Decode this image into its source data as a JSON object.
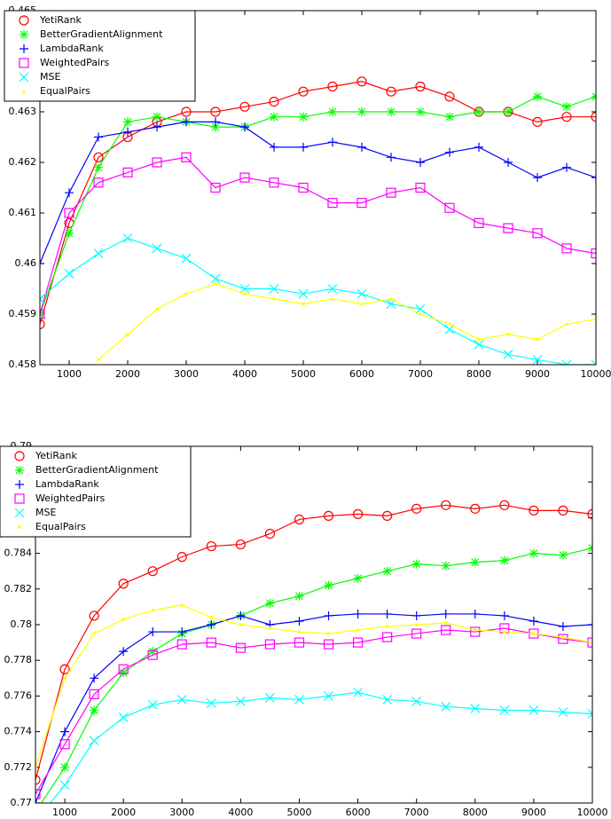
{
  "chart_data": [
    {
      "type": "line",
      "legend": "upper left",
      "x": [
        500,
        1000,
        1500,
        2000,
        2500,
        3000,
        3500,
        4000,
        4500,
        5000,
        5500,
        6000,
        6500,
        7000,
        7500,
        8000,
        8500,
        9000,
        9500,
        10000
      ],
      "xlim": [
        500,
        10000
      ],
      "xticks": [
        1000,
        2000,
        3000,
        4000,
        5000,
        6000,
        7000,
        8000,
        9000,
        10000
      ],
      "ylim": [
        0.458,
        0.465
      ],
      "yticks": [
        0.458,
        0.459,
        0.46,
        0.461,
        0.462,
        0.463,
        0.464,
        0.465
      ],
      "series": [
        {
          "name": "YetiRank",
          "color": "#ff0000",
          "marker": "o",
          "values": [
            0.4588,
            0.4608,
            0.4621,
            0.4625,
            0.4628,
            0.463,
            0.463,
            0.4631,
            0.4632,
            0.4634,
            0.4635,
            0.4636,
            0.4634,
            0.4635,
            0.4633,
            0.463,
            0.463,
            0.4628,
            0.4629,
            0.4629
          ]
        },
        {
          "name": "BetterGradientAlignment",
          "color": "#00ff00",
          "marker": "*",
          "values": [
            0.459,
            0.4606,
            0.4619,
            0.4628,
            0.4629,
            0.4628,
            0.4627,
            0.4627,
            0.4629,
            0.4629,
            0.463,
            0.463,
            0.463,
            0.463,
            0.4629,
            0.463,
            0.463,
            0.4633,
            0.4631,
            0.4633
          ]
        },
        {
          "name": "LambdaRank",
          "color": "#0000ff",
          "marker": "+",
          "values": [
            0.46,
            0.4614,
            0.4625,
            0.4626,
            0.4627,
            0.4628,
            0.4628,
            0.4627,
            0.4623,
            0.4623,
            0.4624,
            0.4623,
            0.4621,
            0.462,
            0.4622,
            0.4623,
            0.462,
            0.4617,
            0.4619,
            0.4617
          ]
        },
        {
          "name": "WeightedPairs",
          "color": "#ff00ff",
          "marker": "s",
          "values": [
            0.459,
            0.461,
            0.4616,
            0.4618,
            0.462,
            0.4621,
            0.4615,
            0.4617,
            0.4616,
            0.4615,
            0.4612,
            0.4612,
            0.4614,
            0.4615,
            0.4611,
            0.4608,
            0.4607,
            0.4606,
            0.4603,
            0.4602
          ]
        },
        {
          "name": "MSE",
          "color": "#00ffff",
          "marker": "x",
          "values": [
            0.4593,
            0.4598,
            0.4602,
            0.4605,
            0.4603,
            0.4601,
            0.4597,
            0.4595,
            0.4595,
            0.4594,
            0.4595,
            0.4594,
            0.4592,
            0.4591,
            0.4587,
            0.4584,
            0.4582,
            0.4581,
            0.458,
            0.458
          ]
        },
        {
          "name": "EqualPairs",
          "color": "#ffff00",
          "marker": ".",
          "values": [
            null,
            null,
            0.4581,
            0.4586,
            0.4591,
            0.4594,
            0.4596,
            0.4594,
            0.4593,
            0.4592,
            0.4593,
            0.4592,
            0.4593,
            0.459,
            0.4588,
            0.4585,
            0.4586,
            0.4585,
            0.4588,
            0.4589
          ]
        }
      ]
    },
    {
      "type": "line",
      "legend": "upper left",
      "x": [
        500,
        1000,
        1500,
        2000,
        2500,
        3000,
        3500,
        4000,
        4500,
        5000,
        5500,
        6000,
        6500,
        7000,
        7500,
        8000,
        8500,
        9000,
        9500,
        10000
      ],
      "xlim": [
        500,
        10000
      ],
      "xticks": [
        1000,
        2000,
        3000,
        4000,
        5000,
        6000,
        7000,
        8000,
        9000,
        10000
      ],
      "ylim": [
        0.77,
        0.79
      ],
      "yticks": [
        0.77,
        0.772,
        0.774,
        0.776,
        0.778,
        0.78,
        0.782,
        0.784,
        0.786,
        0.788,
        0.79
      ],
      "series": [
        {
          "name": "YetiRank",
          "color": "#ff0000",
          "marker": "o",
          "values": [
            0.7713,
            0.7775,
            0.7805,
            0.7823,
            0.783,
            0.7838,
            0.7844,
            0.7845,
            0.7851,
            0.7859,
            0.7861,
            0.7862,
            0.7861,
            0.7865,
            0.7867,
            0.7865,
            0.7867,
            0.7864,
            0.7864,
            0.7862
          ]
        },
        {
          "name": "BetterGradientAlignment",
          "color": "#00ff00",
          "marker": "*",
          "values": [
            0.7695,
            0.772,
            0.7752,
            0.7773,
            0.7785,
            0.7795,
            0.78,
            0.7805,
            0.7812,
            0.7816,
            0.7822,
            0.7826,
            0.783,
            0.7834,
            0.7833,
            0.7835,
            0.7836,
            0.784,
            0.7839,
            0.7843
          ]
        },
        {
          "name": "LambdaRank",
          "color": "#0000ff",
          "marker": "+",
          "values": [
            0.77,
            0.774,
            0.777,
            0.7785,
            0.7796,
            0.7796,
            0.78,
            0.7805,
            0.78,
            0.7802,
            0.7805,
            0.7806,
            0.7806,
            0.7805,
            0.7806,
            0.7806,
            0.7805,
            0.7802,
            0.7799,
            0.78
          ]
        },
        {
          "name": "WeightedPairs",
          "color": "#ff00ff",
          "marker": "s",
          "values": [
            0.7705,
            0.7733,
            0.7761,
            0.7775,
            0.7783,
            0.7789,
            0.779,
            0.7787,
            0.7789,
            0.779,
            0.7789,
            0.779,
            0.7793,
            0.7795,
            0.7797,
            0.7796,
            0.7798,
            0.7795,
            0.7792,
            0.779
          ]
        },
        {
          "name": "MSE",
          "color": "#00ffff",
          "marker": "x",
          "values": [
            0.769,
            0.771,
            0.7735,
            0.7748,
            0.7755,
            0.7758,
            0.7756,
            0.7757,
            0.7759,
            0.7758,
            0.776,
            0.7762,
            0.7758,
            0.7757,
            0.7754,
            0.7753,
            0.7752,
            0.7752,
            0.7751,
            0.775
          ]
        },
        {
          "name": "EqualPairs",
          "color": "#ffff00",
          "marker": ".",
          "values": [
            0.772,
            0.777,
            0.7795,
            0.7803,
            0.7808,
            0.7811,
            0.7804,
            0.78,
            0.7798,
            0.7796,
            0.7795,
            0.7797,
            0.7799,
            0.78,
            0.7801,
            0.7797,
            0.7796,
            0.7795,
            0.7793,
            0.779
          ]
        }
      ]
    }
  ]
}
